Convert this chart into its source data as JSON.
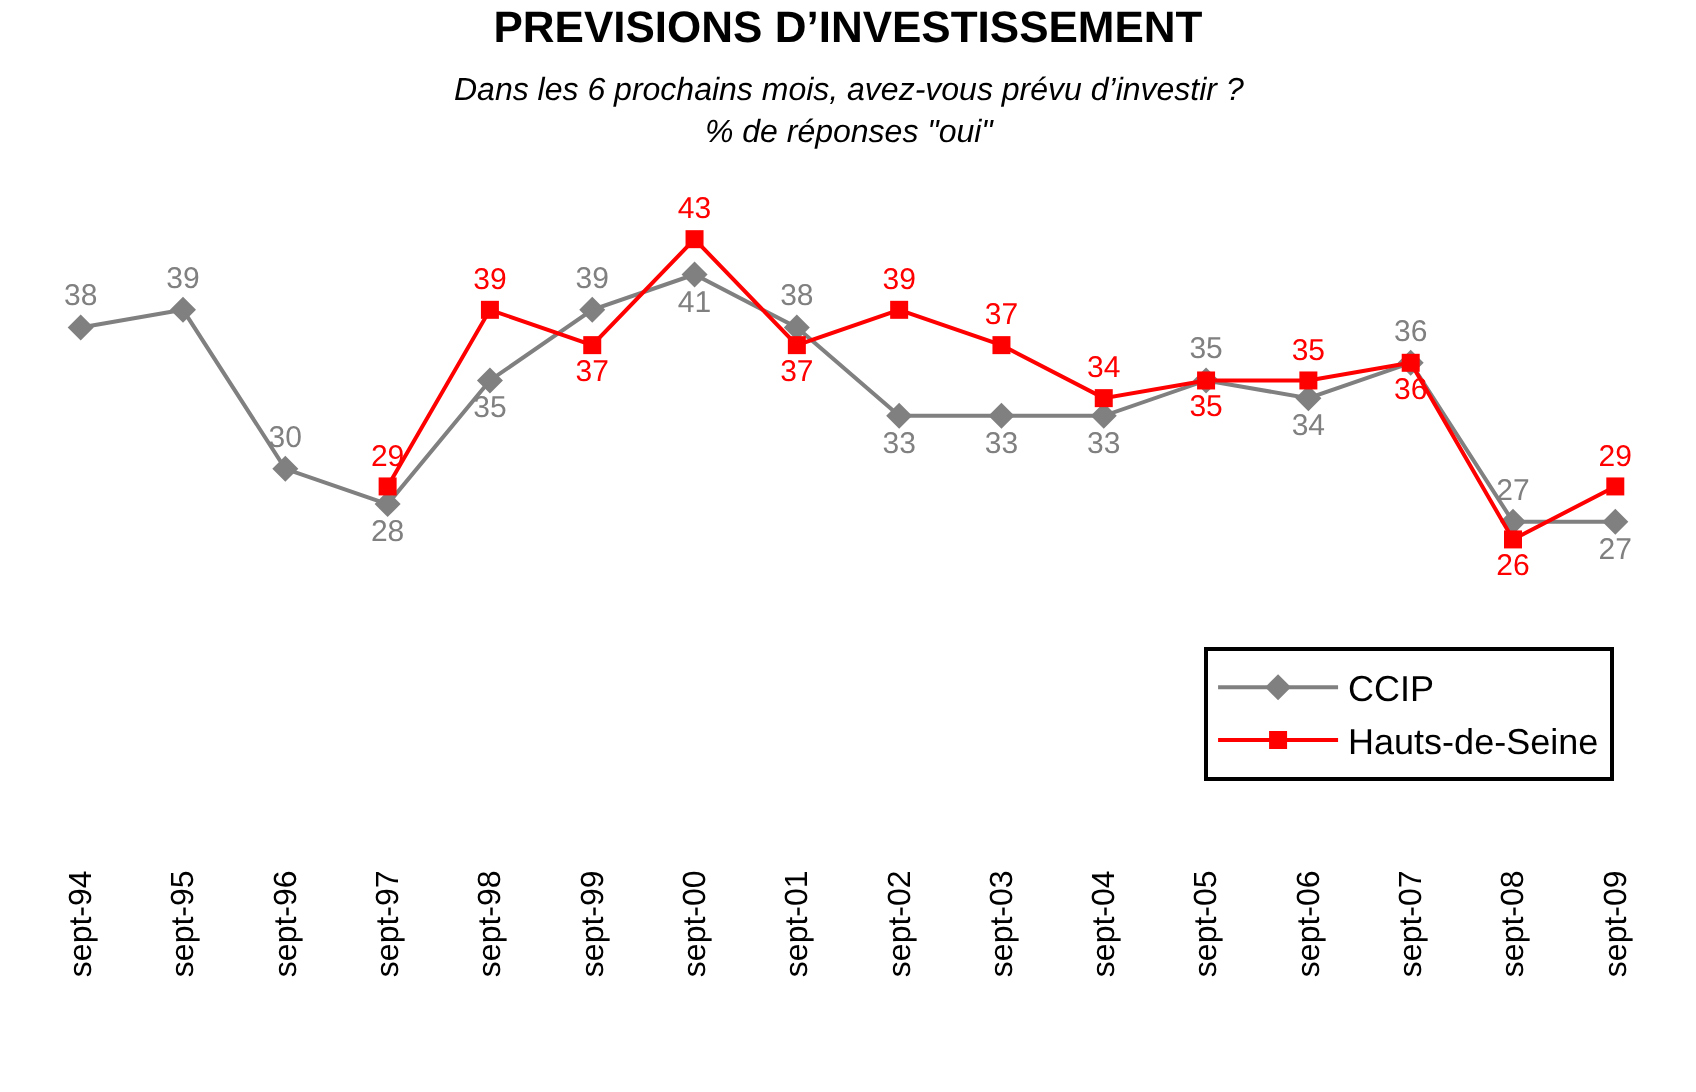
{
  "chart_data": {
    "type": "line",
    "title": "PREVISIONS D’INVESTISSEMENT",
    "subtitle": "Dans les 6 prochains mois, avez-vous prévu d’investir ?\n% de réponses \"oui\"",
    "categories": [
      "sept-94",
      "sept-95",
      "sept-96",
      "sept-97",
      "sept-98",
      "sept-99",
      "sept-00",
      "sept-01",
      "sept-02",
      "sept-03",
      "sept-04",
      "sept-05",
      "sept-06",
      "sept-07",
      "sept-08",
      "sept-09"
    ],
    "series": [
      {
        "name": "CCIP",
        "color": "#808080",
        "marker": "diamond",
        "values": [
          38,
          39,
          30,
          28,
          35,
          39,
          41,
          38,
          33,
          33,
          33,
          35,
          34,
          36,
          27,
          27
        ]
      },
      {
        "name": "Hauts-de-Seine",
        "color": "#ff0000",
        "marker": "square",
        "values": [
          null,
          null,
          null,
          29,
          39,
          37,
          43,
          37,
          39,
          37,
          34,
          35,
          35,
          36,
          26,
          29
        ]
      }
    ],
    "data_labels": true,
    "legend": "bottom right",
    "tick_labels": "x",
    "line_style": "solid"
  }
}
